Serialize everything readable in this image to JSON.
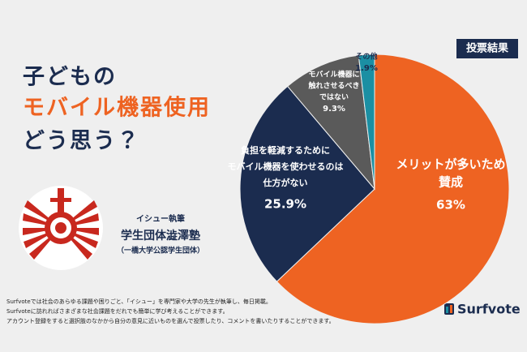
{
  "header": {
    "title_lines": [
      "子どもの",
      "モバイル機器使用",
      "どう思う？"
    ]
  },
  "badge": "投票結果",
  "author": {
    "role": "イシュー執筆",
    "name": "学生団体澁澤塾",
    "note": "（一橋大学公認学生団体）"
  },
  "footer": {
    "lines": [
      "Surfvoteでは社会のあらゆる課題や困りごと、「イシュー」を専門家や大学の先生が執筆し、毎日掲載。",
      "Surfvoteに訪れればさまざまな社会課題をだれでも簡単に学び考えることができます。",
      "アカウント登録をすると選択肢のなかから自分の意見に近いものを選んで投票したり、コメントを書いたりすることができます。"
    ]
  },
  "brand": "Surfvote",
  "chart_data": {
    "type": "pie",
    "categories": [
      [
        "メリットが多いため",
        "賛成"
      ],
      [
        "負担を軽減するために",
        "モバイル機器を使わせるのは",
        "仕方がない"
      ],
      [
        "モバイル機器に",
        "触れさせるべき",
        "ではない"
      ],
      [
        "その他"
      ]
    ],
    "values": [
      63,
      25.9,
      9.3,
      1.9
    ],
    "value_labels": [
      "63%",
      "25.9%",
      "9.3%",
      "1.9%"
    ],
    "colors": [
      "#ee6322",
      "#1b2c4f",
      "#5a5a5a",
      "#1b8fa3"
    ],
    "label_colors": [
      "#ffffff",
      "#ffffff",
      "#ffffff",
      "#1b2c4f"
    ]
  }
}
